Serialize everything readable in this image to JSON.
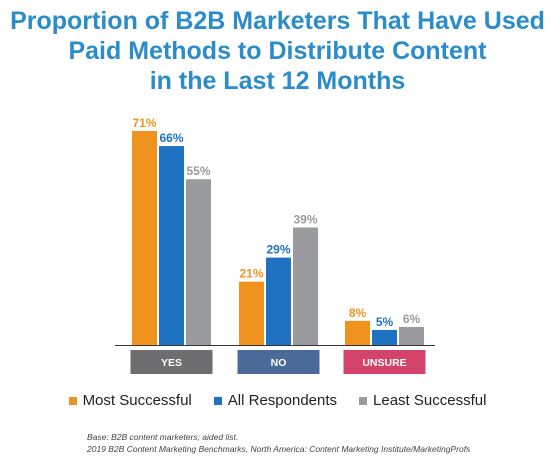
{
  "title_lines": [
    "Proportion of B2B Marketers That Have Used",
    "Paid Methods to Distribute Content",
    "in the Last 12 Months"
  ],
  "chart_data": {
    "type": "bar",
    "title": "Proportion of B2B Marketers That Have Used Paid Methods to Distribute Content in the Last 12 Months",
    "categories": [
      "YES",
      "NO",
      "UNSURE"
    ],
    "category_colors": [
      "#6e6e70",
      "#4a6a9a",
      "#d4436a"
    ],
    "series": [
      {
        "name": "Most Successful",
        "color": "#f0921e",
        "values": [
          71,
          21,
          8
        ],
        "labels": [
          "71%",
          "21%",
          "8%"
        ]
      },
      {
        "name": "All Respondents",
        "color": "#1f72c2",
        "values": [
          66,
          29,
          5
        ],
        "labels": [
          "66%",
          "29%",
          "5%"
        ]
      },
      {
        "name": "Least Successful",
        "color": "#9a9b9e",
        "values": [
          55,
          39,
          6
        ],
        "labels": [
          "55%",
          "39%",
          "6%"
        ]
      }
    ],
    "ylim": [
      0,
      71
    ],
    "grid": false,
    "legend_position": "bottom"
  },
  "footnote": {
    "line1": "Base: B2B content marketers; aided list.",
    "line2": "2019 B2B Content Marketing Benchmarks, North America: Content Marketing Institute/MarketingProfs"
  }
}
